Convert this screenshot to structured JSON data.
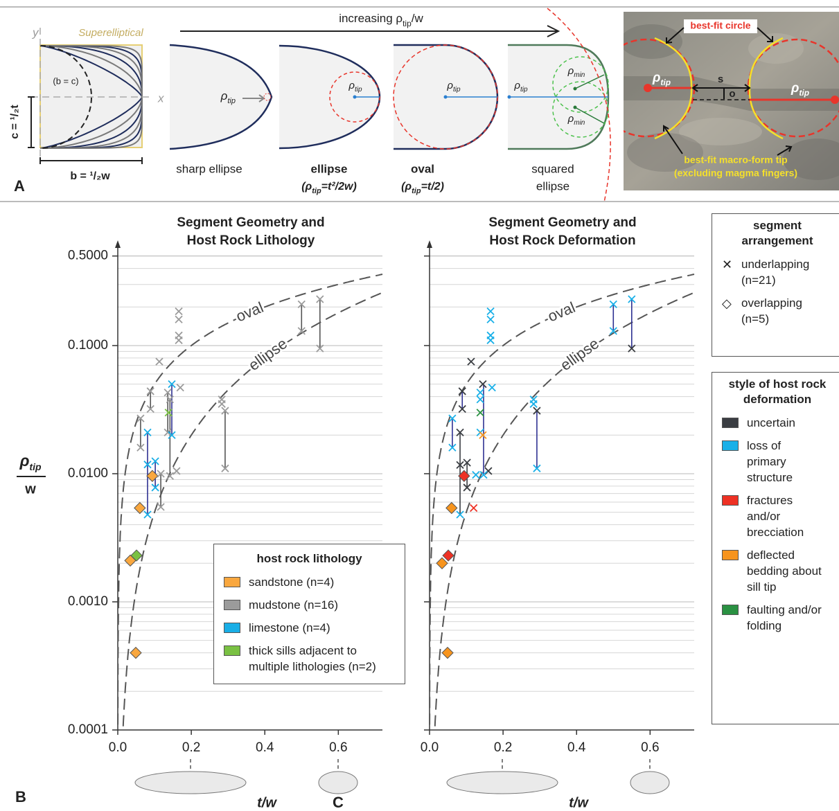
{
  "panel_a": {
    "letter": "A",
    "superellipse": {
      "title": "Superelliptical",
      "y_axis": "y",
      "x_axis": "x",
      "circle_label": "(b = c)",
      "c_label": "c = ¹/₂t",
      "b_label": "b = ¹/₂w"
    },
    "arrow_label": [
      "increasing ρ",
      "tip",
      "/w"
    ],
    "shapes": [
      {
        "name": [
          "sharp ellipse"
        ],
        "rho": [
          "ρ",
          "tip"
        ]
      },
      {
        "name": [
          "ellipse"
        ],
        "formula": [
          "(ρ",
          "tip",
          "=t²/2w)"
        ],
        "rho": [
          "ρ",
          "tip"
        ]
      },
      {
        "name": [
          "oval"
        ],
        "formula": [
          "(ρ",
          "tip",
          "=t/2)"
        ],
        "rho": [
          "ρ",
          "tip"
        ]
      },
      {
        "name": [
          "squared",
          "ellipse"
        ],
        "rho": [
          "ρ",
          "tip"
        ],
        "rho_min": [
          [
            "ρ",
            "min"
          ],
          [
            "ρ",
            "min"
          ]
        ]
      }
    ],
    "photo": {
      "circle_label": "best-fit circle",
      "rho_left": [
        "ρ",
        "tip"
      ],
      "rho_right": [
        "ρ",
        "tip"
      ],
      "s": "s",
      "o": "o",
      "tip_label": [
        "best-fit macro-form tip",
        "(excluding magma fingers)"
      ]
    }
  },
  "chart_data": [
    {
      "type": "scatter",
      "letter": "B",
      "title": [
        "Segment Geometry and",
        "Host Rock Lithology"
      ],
      "ylabel": [
        "ρ",
        "tip",
        "w"
      ],
      "xlabel": "t/w",
      "log_y": true,
      "grid": true,
      "ytick_labels": true,
      "xlim": [
        0,
        0.72
      ],
      "ylim": [
        0.0001,
        0.6
      ],
      "xticks": [
        {
          "value": 0,
          "label": "0.0"
        },
        {
          "value": 0.2,
          "label": "0.2"
        },
        {
          "value": 0.4,
          "label": "0.4"
        },
        {
          "value": 0.6,
          "label": "0.6"
        }
      ],
      "yticks": [
        0.0001,
        {
          "value": 0.001,
          "label": "0.0010"
        },
        {
          "value": 0.01,
          "label": "0.0100"
        },
        {
          "value": 0.1,
          "label": "0.1000"
        },
        {
          "value": 0.5,
          "label": "0.5000"
        }
      ],
      "curve_labels": [
        "oval",
        "ellipse"
      ],
      "legend": "lower right",
      "legend_title": "host rock lithology",
      "series": [
        {
          "name": "sandstone (n=4)",
          "color": "#f9a73e",
          "marker": "diamond",
          "x": [
            0.094,
            0.06,
            0.034,
            0.049
          ],
          "values": [
            0.0096,
            0.0054,
            0.0021,
            0.0004
          ]
        },
        {
          "name": "mudstone (n=16)",
          "color": "#9b9b9b",
          "marker": "x",
          "x": [
            0.062,
            0.062,
            0.089,
            0.089,
            0.113,
            0.117,
            0.117,
            0.136,
            0.136,
            0.142,
            0.142,
            0.16,
            0.166,
            0.166,
            0.166,
            0.166,
            0.17,
            0.283,
            0.283,
            0.292,
            0.292,
            0.5,
            0.5,
            0.55,
            0.55
          ],
          "values": [
            0.027,
            0.016,
            0.044,
            0.032,
            0.075,
            0.0055,
            0.01,
            0.043,
            0.021,
            0.038,
            0.0096,
            0.0105,
            0.185,
            0.16,
            0.12,
            0.11,
            0.047,
            0.038,
            0.035,
            0.031,
            0.011,
            0.21,
            0.13,
            0.23,
            0.095
          ]
        },
        {
          "name": "limestone (n=4)",
          "color": "#19aee6",
          "marker": "x",
          "x": [
            0.081,
            0.081,
            0.081,
            0.102,
            0.102,
            0.147,
            0.147
          ],
          "values": [
            0.021,
            0.0118,
            0.0048,
            0.0125,
            0.0078,
            0.05,
            0.02
          ]
        },
        {
          "name": "thick sills adjacent to multiple lithologies (n=2)",
          "color": "#7ac143",
          "markers": [
            "x",
            "diamond"
          ],
          "x": [
            0.138,
            0.051
          ],
          "values": [
            0.03,
            0.0023
          ]
        }
      ],
      "ranges": {
        "x": [
          0.062,
          0.089,
          0.081,
          0.102,
          0.117,
          0.136,
          0.142,
          0.147,
          0.292,
          0.5,
          0.55
        ],
        "low": [
          0.016,
          0.032,
          0.0048,
          0.0078,
          0.0055,
          0.021,
          0.0096,
          0.02,
          0.011,
          0.13,
          0.095
        ],
        "high": [
          0.027,
          0.044,
          0.021,
          0.0125,
          0.01,
          0.043,
          0.038,
          0.05,
          0.031,
          0.21,
          0.23
        ],
        "colors": [
          "#555555",
          "#555555",
          "#2e3192",
          "#2e3192",
          "#555555",
          "#555555",
          "#555555",
          "#2e3192",
          "#555555",
          "#555555",
          "#555555"
        ]
      }
    },
    {
      "type": "scatter",
      "letter": "C",
      "title": [
        "Segment Geometry and",
        "Host Rock Deformation"
      ],
      "xlabel": "t/w",
      "log_y": true,
      "grid": true,
      "ytick_labels": false,
      "xlim": [
        0,
        0.72
      ],
      "ylim": [
        0.0001,
        0.6
      ],
      "xticks": [
        {
          "value": 0,
          "label": "0.0"
        },
        {
          "value": 0.2,
          "label": "0.2"
        },
        {
          "value": 0.4,
          "label": "0.4"
        },
        {
          "value": 0.6,
          "label": "0.6"
        }
      ],
      "yticks": [
        0.0001,
        0.001,
        0.01,
        0.1,
        0.5
      ],
      "curve_labels": [
        "oval",
        "ellipse"
      ],
      "legend": "right",
      "legend_title": "style of host rock deformation",
      "series": [
        {
          "name": "uncertain",
          "color": "#3a3d42",
          "marker": "x",
          "x": [
            0.089,
            0.089,
            0.083,
            0.083,
            0.113,
            0.102,
            0.102,
            0.145,
            0.16,
            0.292,
            0.55
          ],
          "values": [
            0.044,
            0.032,
            0.021,
            0.0117,
            0.075,
            0.0122,
            0.0078,
            0.05,
            0.0105,
            0.031,
            0.095
          ]
        },
        {
          "name": "loss of primary structure",
          "color": "#1ab0e8",
          "marker": "x",
          "x": [
            0.062,
            0.062,
            0.083,
            0.126,
            0.138,
            0.138,
            0.138,
            0.147,
            0.166,
            0.166,
            0.166,
            0.166,
            0.17,
            0.283,
            0.283,
            0.292,
            0.5,
            0.5,
            0.55
          ],
          "values": [
            0.027,
            0.016,
            0.0048,
            0.0098,
            0.043,
            0.038,
            0.021,
            0.0098,
            0.185,
            0.16,
            0.12,
            0.11,
            0.047,
            0.038,
            0.035,
            0.011,
            0.21,
            0.13,
            0.23
          ]
        },
        {
          "name": "fractures and/or brecciation",
          "color": "#ee3124",
          "markers": [
            "x",
            "diamond",
            "diamond"
          ],
          "x": [
            0.12,
            0.051,
            0.094
          ],
          "values": [
            0.0054,
            0.0023,
            0.0096
          ]
        },
        {
          "name": "deflected bedding about sill tip",
          "color": "#f7941d",
          "markers": [
            "x",
            "diamond",
            "diamond",
            "diamond"
          ],
          "x": [
            0.145,
            0.06,
            0.034,
            0.049
          ],
          "values": [
            0.02,
            0.0054,
            0.002,
            0.0004
          ]
        },
        {
          "name": "faulting and/or folding",
          "color": "#2a9142",
          "marker": "x",
          "x": [
            0.138
          ],
          "values": [
            0.03
          ]
        }
      ],
      "ranges": {
        "x": [
          0.062,
          0.083,
          0.089,
          0.102,
          0.147,
          0.292,
          0.5,
          0.55
        ],
        "low": [
          0.016,
          0.0048,
          0.032,
          0.0078,
          0.0098,
          0.011,
          0.13,
          0.095
        ],
        "high": [
          0.027,
          0.021,
          0.044,
          0.0122,
          0.05,
          0.031,
          0.21,
          0.23
        ],
        "colors": [
          "#2e3192",
          "#3a3d42",
          "#2e3192",
          "#3a3d42",
          "#2e3192",
          "#2e3192",
          "#2e3192",
          "#2e3192"
        ]
      }
    }
  ],
  "segment_arrangement": {
    "title": "segment arrangement",
    "items": [
      "underlapping (n=21)",
      "overlapping (n=5)"
    ]
  }
}
